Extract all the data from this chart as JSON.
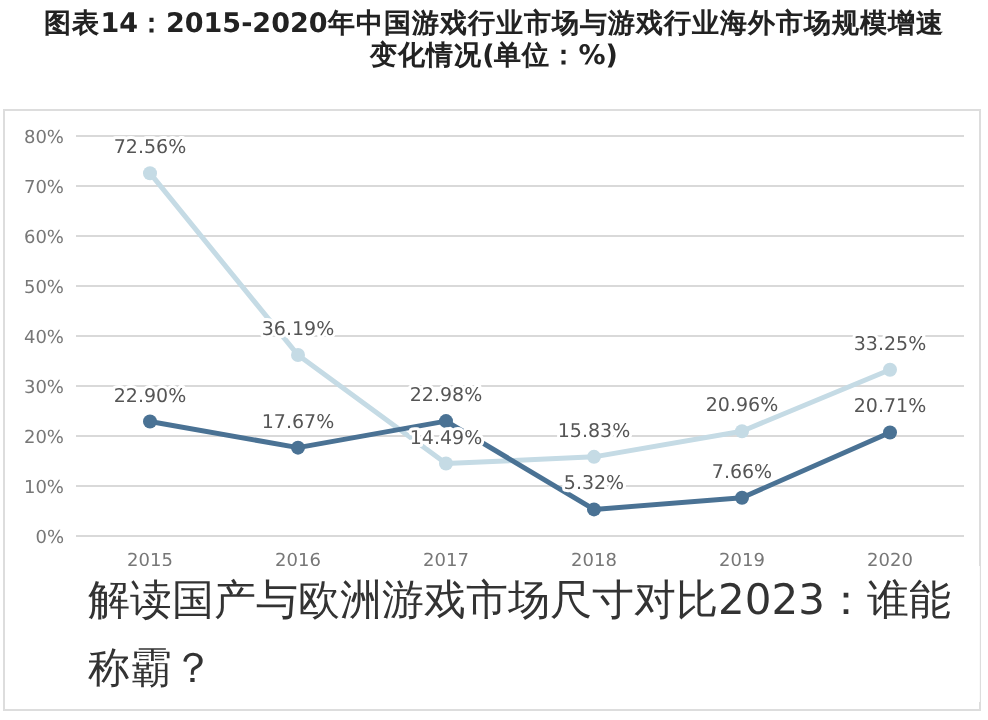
{
  "chart_data": {
    "type": "line",
    "title": "图表14：2015-2020年中国游戏行业市场与游戏行业海外市场规模增速变化情况(单位：%)",
    "categories": [
      "2015",
      "2016",
      "2017",
      "2018",
      "2019",
      "2020"
    ],
    "series": [
      {
        "color": "#4a7294",
        "values": [
          22.9,
          17.67,
          22.98,
          5.32,
          7.66,
          20.71
        ],
        "value_labels": [
          "22.90%",
          "17.67%",
          "22.98%",
          "5.32%",
          "7.66%",
          "20.71%"
        ]
      },
      {
        "color": "#c5dbe5",
        "values": [
          72.56,
          36.19,
          14.49,
          15.83,
          20.96,
          33.25
        ],
        "value_labels": [
          "72.56%",
          "36.19%",
          "14.49%",
          "15.83%",
          "20.96%",
          "33.25%"
        ]
      }
    ],
    "ylim": [
      0,
      80
    ],
    "yticks": [
      {
        "value": 0,
        "label": "0%"
      },
      {
        "value": 10,
        "label": "10%"
      },
      {
        "value": 20,
        "label": "20%"
      },
      {
        "value": 30,
        "label": "30%"
      },
      {
        "value": 40,
        "label": "40%"
      },
      {
        "value": 50,
        "label": "50%"
      },
      {
        "value": 60,
        "label": "60%"
      },
      {
        "value": 70,
        "label": "70%"
      },
      {
        "value": 80,
        "label": "80%"
      }
    ],
    "grid": "y",
    "marker": "circle",
    "line_style": "solid",
    "annotations": [
      "解读国产与欧洲游戏市场尺寸对比2023：谁能称霸？"
    ]
  }
}
